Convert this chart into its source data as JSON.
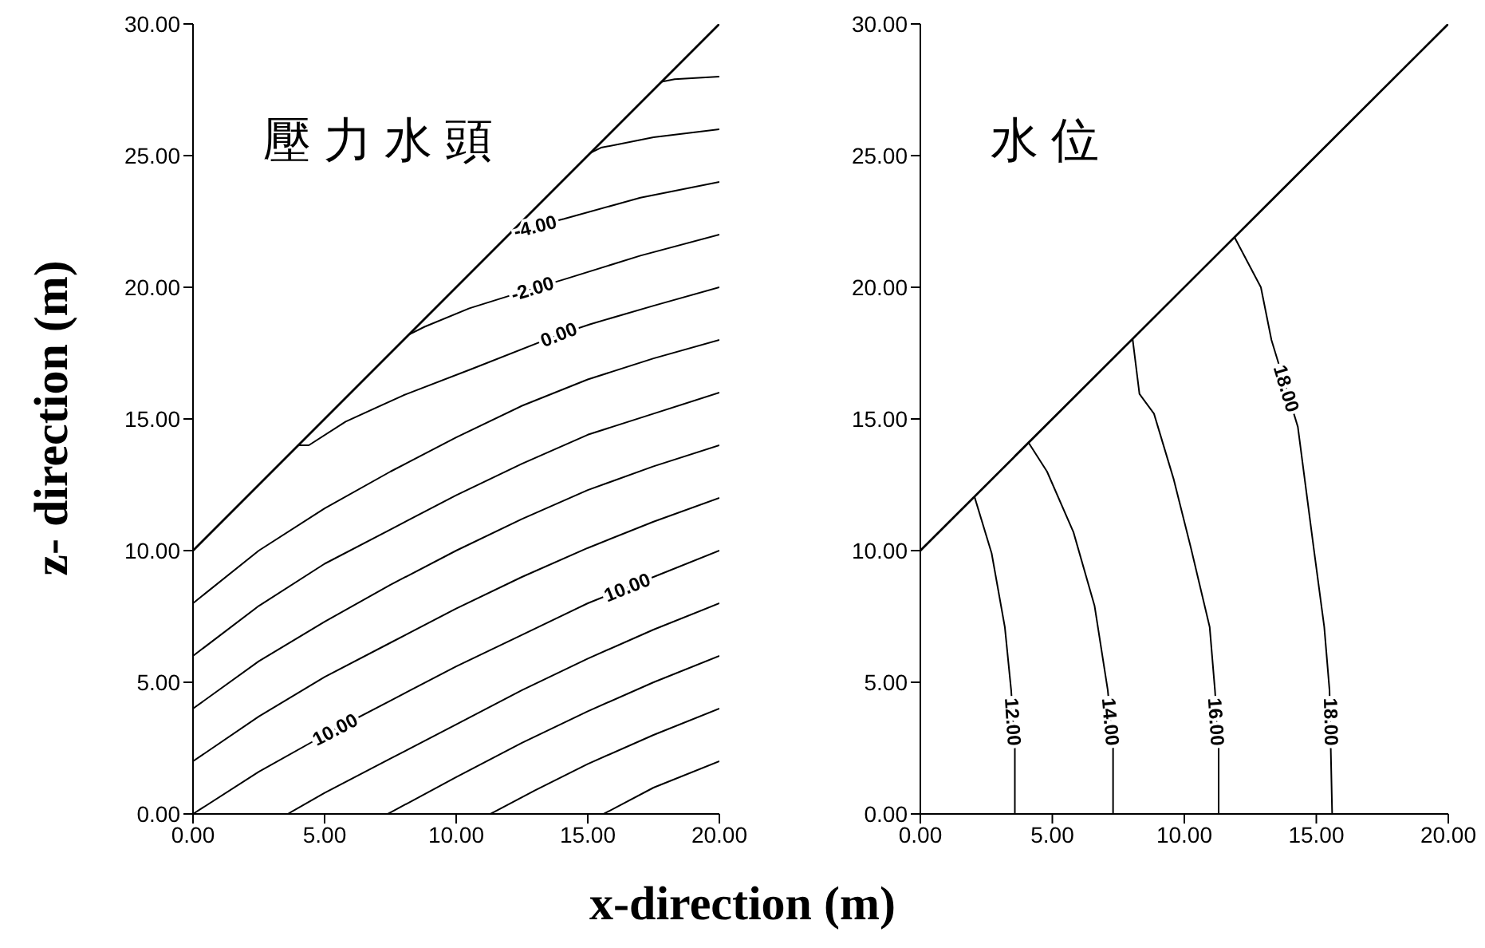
{
  "chart_data": [
    {
      "type": "line",
      "title": "壓力水頭",
      "xlabel": "x-direction (m)",
      "ylabel": "z- direction (m)",
      "xlim": [
        0,
        20
      ],
      "ylim": [
        0,
        30
      ],
      "xticks": [
        {
          "value": 0,
          "label": "0.00"
        },
        {
          "value": 5,
          "label": "5.00"
        },
        {
          "value": 10,
          "label": "10.00"
        },
        {
          "value": 15,
          "label": "15.00"
        },
        {
          "value": 20,
          "label": "20.00"
        }
      ],
      "yticks": [
        {
          "value": 0,
          "label": "0.00"
        },
        {
          "value": 5,
          "label": "5.00"
        },
        {
          "value": 10,
          "label": "10.00"
        },
        {
          "value": 15,
          "label": "15.00"
        },
        {
          "value": 20,
          "label": "20.00"
        },
        {
          "value": 25,
          "label": "25.00"
        },
        {
          "value": 30,
          "label": "30.00"
        }
      ],
      "series": [
        {
          "color": "#000000",
          "x": [
            0,
            20
          ],
          "values": [
            10,
            30
          ]
        },
        {
          "color": "#000000",
          "x": [
            17.8,
            18.3,
            20
          ],
          "values": [
            27.8,
            27.9,
            28
          ]
        },
        {
          "color": "#000000",
          "x": [
            15.1,
            15.5,
            17.5,
            20
          ],
          "values": [
            25.1,
            25.3,
            25.7,
            26
          ]
        },
        {
          "color": "#000000",
          "x": [
            12.1,
            14.1,
            17,
            20
          ],
          "values": [
            22.1,
            22.6,
            23.4,
            24
          ]
        },
        {
          "color": "#000000",
          "x": [
            8.2,
            8.8,
            10.5,
            12.1,
            14.1,
            17,
            20
          ],
          "values": [
            18.2,
            18.5,
            19.2,
            19.7,
            20.3,
            21.2,
            22
          ]
        },
        {
          "color": "#000000",
          "x": [
            4.0,
            4.4,
            5.8,
            8.0,
            10.6,
            13.9,
            15.1,
            17.5,
            20
          ],
          "values": [
            14.0,
            14.0,
            14.9,
            15.9,
            16.9,
            18.2,
            18.6,
            19.3,
            20
          ]
        },
        {
          "color": "#000000",
          "x": [
            0,
            2.5,
            5,
            7.5,
            10,
            12.5,
            15,
            17.5,
            20
          ],
          "values": [
            8,
            10,
            11.6,
            13,
            14.3,
            15.5,
            16.5,
            17.3,
            18
          ]
        },
        {
          "color": "#000000",
          "x": [
            0,
            2.5,
            5,
            7.5,
            10,
            12.5,
            15,
            17.5,
            20
          ],
          "values": [
            6,
            7.9,
            9.5,
            10.8,
            12.1,
            13.3,
            14.4,
            15.2,
            16
          ]
        },
        {
          "color": "#000000",
          "x": [
            0,
            2.5,
            5,
            7.5,
            10,
            12.5,
            15,
            17.5,
            20
          ],
          "values": [
            4,
            5.8,
            7.3,
            8.7,
            10.0,
            11.2,
            12.3,
            13.2,
            14
          ]
        },
        {
          "color": "#000000",
          "x": [
            0,
            2.5,
            5,
            7.5,
            10,
            12.5,
            15,
            17.5,
            20
          ],
          "values": [
            2,
            3.7,
            5.2,
            6.5,
            7.8,
            9.0,
            10.1,
            11.1,
            12
          ]
        },
        {
          "color": "#000000",
          "x": [
            0,
            2.5,
            5,
            7.5,
            10,
            12.5,
            15,
            17.5,
            20
          ],
          "values": [
            0,
            1.6,
            3.0,
            4.3,
            5.6,
            6.8,
            8.0,
            9.0,
            10
          ]
        },
        {
          "color": "#000000",
          "x": [
            3.6,
            5,
            7.5,
            10,
            12.5,
            15,
            17.5,
            20
          ],
          "values": [
            0,
            0.8,
            2.1,
            3.4,
            4.7,
            5.9,
            7.0,
            8
          ]
        },
        {
          "color": "#000000",
          "x": [
            7.4,
            10,
            12.5,
            15,
            17.5,
            20
          ],
          "values": [
            0,
            1.4,
            2.7,
            3.9,
            5.0,
            6
          ]
        },
        {
          "color": "#000000",
          "x": [
            11.3,
            13,
            15,
            17.5,
            20
          ],
          "values": [
            0,
            0.9,
            1.9,
            3.0,
            4
          ]
        },
        {
          "color": "#000000",
          "x": [
            15.6,
            17.5,
            20
          ],
          "values": [
            0,
            1.0,
            2
          ]
        }
      ],
      "annotations": [
        {
          "text": "-4.00",
          "x": 13.0,
          "y": 22.3
        },
        {
          "text": "-2.00",
          "x": 12.9,
          "y": 19.94
        },
        {
          "text": "0.00",
          "x": 13.9,
          "y": 18.2
        },
        {
          "text": "10.00",
          "x": 16.5,
          "y": 8.6
        },
        {
          "text": "10.00",
          "x": 5.4,
          "y": 3.2
        }
      ]
    },
    {
      "type": "line",
      "title": "水位",
      "xlim": [
        0,
        20
      ],
      "ylim": [
        0,
        30
      ],
      "xticks": [
        {
          "value": 0,
          "label": "0.00"
        },
        {
          "value": 5,
          "label": "5.00"
        },
        {
          "value": 10,
          "label": "10.00"
        },
        {
          "value": 15,
          "label": "15.00"
        },
        {
          "value": 20,
          "label": "20.00"
        }
      ],
      "yticks": [
        {
          "value": 0,
          "label": "0.00"
        },
        {
          "value": 5,
          "label": "5.00"
        },
        {
          "value": 10,
          "label": "10.00"
        },
        {
          "value": 15,
          "label": "15.00"
        },
        {
          "value": 20,
          "label": "20.00"
        },
        {
          "value": 25,
          "label": "25.00"
        },
        {
          "value": 30,
          "label": "30.00"
        }
      ],
      "series": [
        {
          "color": "#000000",
          "x": [
            0,
            20
          ],
          "values": [
            10,
            30
          ]
        },
        {
          "color": "#000000",
          "x": [
            2.05,
            2.7,
            3.2,
            3.44,
            3.58,
            3.58
          ],
          "values": [
            12.05,
            9.9,
            7.1,
            4.7,
            2.5,
            0
          ]
        },
        {
          "color": "#000000",
          "x": [
            4.1,
            4.8,
            5.8,
            6.6,
            7.1,
            7.3,
            7.3
          ],
          "values": [
            14.1,
            13.0,
            10.7,
            7.9,
            4.7,
            2.5,
            0
          ]
        },
        {
          "color": "#000000",
          "x": [
            8.04,
            8.3,
            8.85,
            9.6,
            10.25,
            10.96,
            11.16,
            11.3,
            11.3
          ],
          "values": [
            18.04,
            15.95,
            15.2,
            12.7,
            10.1,
            7.1,
            4.7,
            2.5,
            0
          ]
        },
        {
          "color": "#000000",
          "x": [
            11.9,
            12.9,
            13.3,
            13.86,
            14.3,
            14.9,
            15.3,
            15.5,
            15.6
          ],
          "values": [
            21.9,
            20.0,
            18.0,
            16.15,
            14.7,
            10.1,
            7.1,
            4.7,
            0
          ]
        }
      ],
      "annotations": [
        {
          "text": "12.00",
          "x": 3.5,
          "y": 3.5
        },
        {
          "text": "14.00",
          "x": 7.2,
          "y": 3.5
        },
        {
          "text": "16.00",
          "x": 11.2,
          "y": 3.5
        },
        {
          "text": "18.00",
          "x": 15.55,
          "y": 3.5
        },
        {
          "text": "18.00",
          "x": 13.86,
          "y": 16.15
        }
      ]
    }
  ]
}
